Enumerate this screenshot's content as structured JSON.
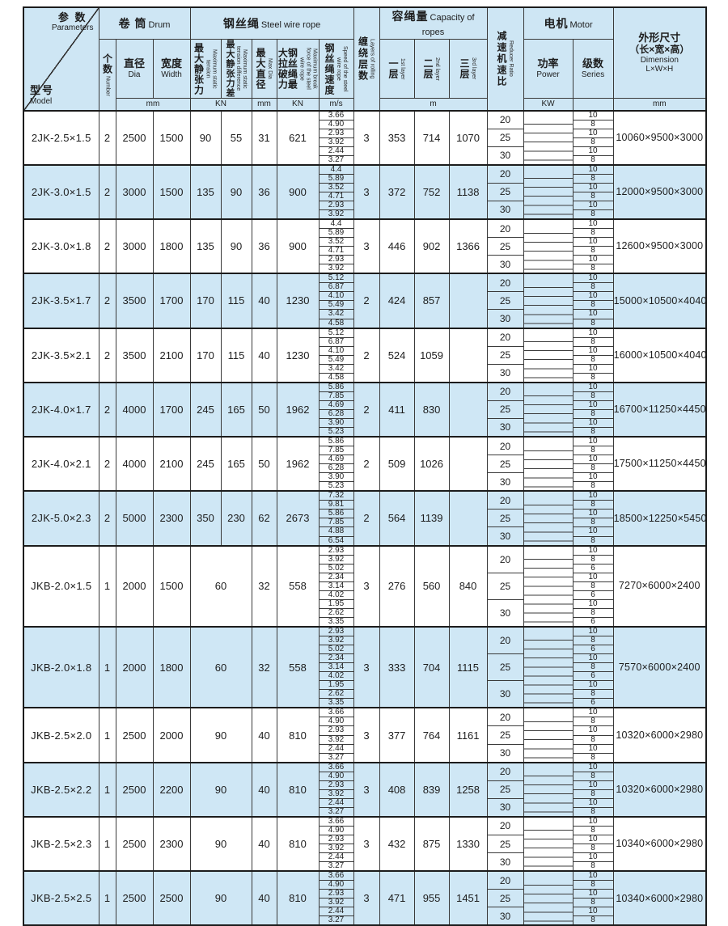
{
  "table": {
    "header": {
      "corner": {
        "top_zh": "参 数",
        "top_en": "Parameters",
        "bottom_zh": "型号",
        "bottom_en": "Model"
      },
      "groups": {
        "drum": {
          "zh": "卷 筒",
          "en": "Drum"
        },
        "rope": {
          "zh": "钢丝绳",
          "en": "Steel wire rope"
        },
        "capacity": {
          "zh": "容绳量",
          "en": "Capacity of ropes"
        },
        "motor": {
          "zh": "电机",
          "en": "Motor"
        }
      },
      "columns": {
        "number": {
          "zh": "个数",
          "en": "Number"
        },
        "dia": {
          "zh": "直径",
          "en": "Dia"
        },
        "width": {
          "zh": "宽度",
          "en": "Width"
        },
        "max_static_tension": {
          "zh": "最大静张力",
          "en": "Maximum static tension"
        },
        "max_static_tension_diff": {
          "zh": "最大静张力差",
          "en": "Maximum static tension difference"
        },
        "max_dia": {
          "zh": "最大直径",
          "en": "Max Dia"
        },
        "break_force": {
          "zh": "钢丝绳最大拉破力",
          "en": "Maximum break force of the steel wire rope"
        },
        "rope_speed": {
          "zh": "钢丝绳速度",
          "en": "Speed of the steel wire rope"
        },
        "layers": {
          "zh": "缠绕层数",
          "en": "Layers of rolling"
        },
        "layer1": {
          "zh": "一层",
          "en": "1st layer"
        },
        "layer2": {
          "zh": "二层",
          "en": "2nd layer"
        },
        "layer3": {
          "zh": "三层",
          "en": "3rd layer"
        },
        "ratio": {
          "zh": "减速机速比",
          "en": "Reducer Ratio"
        },
        "power": {
          "zh": "功率",
          "en": "Power"
        },
        "series": {
          "zh": "级数",
          "en": "Series"
        },
        "dimension": {
          "zh": "外形尺寸",
          "zh2": "（长×宽×高）",
          "en": "Dimension",
          "en2": "L×W×H"
        }
      },
      "units": {
        "drum_mm": "mm",
        "tension_kn": "KN",
        "maxdia_mm": "mm",
        "break_kn": "KN",
        "speed_ms": "m/s",
        "capacity_m": "m",
        "power_kw": "KW",
        "series_unit": "",
        "dim_mm": "mm"
      }
    },
    "rows": [
      {
        "model": "2JK-2.5×1.5",
        "drum_count": "2",
        "drum_dia": "2500",
        "drum_width": "1500",
        "tension_merged": false,
        "max_static_tension": "90",
        "max_static_tension_diff": "55",
        "max_rope_dia": "31",
        "break_force": "621",
        "rope_speeds": [
          "3.66",
          "4.90",
          "2.93",
          "3.92",
          "2.44",
          "3.27"
        ],
        "winding_layers": "3",
        "capacity_1st": "353",
        "capacity_2nd": "714",
        "capacity_3rd": "1070",
        "reducer_ratios": [
          "20",
          "25",
          "30"
        ],
        "motor_series": [
          "10",
          "8"
        ],
        "dimension": "10060×9500×3000"
      },
      {
        "model": "2JK-3.0×1.5",
        "drum_count": "2",
        "drum_dia": "3000",
        "drum_width": "1500",
        "tension_merged": false,
        "max_static_tension": "135",
        "max_static_tension_diff": "90",
        "max_rope_dia": "36",
        "break_force": "900",
        "rope_speeds": [
          "4.4",
          "5.89",
          "3.52",
          "4.71",
          "2.93",
          "3.92"
        ],
        "winding_layers": "3",
        "capacity_1st": "372",
        "capacity_2nd": "752",
        "capacity_3rd": "1138",
        "reducer_ratios": [
          "20",
          "25",
          "30"
        ],
        "motor_series": [
          "10",
          "8"
        ],
        "dimension": "12000×9500×3000"
      },
      {
        "model": "2JK-3.0×1.8",
        "drum_count": "2",
        "drum_dia": "3000",
        "drum_width": "1800",
        "tension_merged": false,
        "max_static_tension": "135",
        "max_static_tension_diff": "90",
        "max_rope_dia": "36",
        "break_force": "900",
        "rope_speeds": [
          "4.4",
          "5.89",
          "3.52",
          "4.71",
          "2.93",
          "3.92"
        ],
        "winding_layers": "3",
        "capacity_1st": "446",
        "capacity_2nd": "902",
        "capacity_3rd": "1366",
        "reducer_ratios": [
          "20",
          "25",
          "30"
        ],
        "motor_series": [
          "10",
          "8"
        ],
        "dimension": "12600×9500×3000"
      },
      {
        "model": "2JK-3.5×1.7",
        "drum_count": "2",
        "drum_dia": "3500",
        "drum_width": "1700",
        "tension_merged": false,
        "max_static_tension": "170",
        "max_static_tension_diff": "115",
        "max_rope_dia": "40",
        "break_force": "1230",
        "rope_speeds": [
          "5.12",
          "6.87",
          "4.10",
          "5.49",
          "3.42",
          "4.58"
        ],
        "winding_layers": "2",
        "capacity_1st": "424",
        "capacity_2nd": "857",
        "capacity_3rd": "",
        "reducer_ratios": [
          "20",
          "25",
          "30"
        ],
        "motor_series": [
          "10",
          "8"
        ],
        "dimension": "15000×10500×4040"
      },
      {
        "model": "2JK-3.5×2.1",
        "drum_count": "2",
        "drum_dia": "3500",
        "drum_width": "2100",
        "tension_merged": false,
        "max_static_tension": "170",
        "max_static_tension_diff": "115",
        "max_rope_dia": "40",
        "break_force": "1230",
        "rope_speeds": [
          "5.12",
          "6.87",
          "4.10",
          "5.49",
          "3.42",
          "4.58"
        ],
        "winding_layers": "2",
        "capacity_1st": "524",
        "capacity_2nd": "1059",
        "capacity_3rd": "",
        "reducer_ratios": [
          "20",
          "25",
          "30"
        ],
        "motor_series": [
          "10",
          "8"
        ],
        "dimension": "16000×10500×4040"
      },
      {
        "model": "2JK-4.0×1.7",
        "drum_count": "2",
        "drum_dia": "4000",
        "drum_width": "1700",
        "tension_merged": false,
        "max_static_tension": "245",
        "max_static_tension_diff": "165",
        "max_rope_dia": "50",
        "break_force": "1962",
        "rope_speeds": [
          "5.86",
          "7.85",
          "4.69",
          "6.28",
          "3.90",
          "5.23"
        ],
        "winding_layers": "2",
        "capacity_1st": "411",
        "capacity_2nd": "830",
        "capacity_3rd": "",
        "reducer_ratios": [
          "20",
          "25",
          "30"
        ],
        "motor_series": [
          "10",
          "8"
        ],
        "dimension": "16700×11250×4450"
      },
      {
        "model": "2JK-4.0×2.1",
        "drum_count": "2",
        "drum_dia": "4000",
        "drum_width": "2100",
        "tension_merged": false,
        "max_static_tension": "245",
        "max_static_tension_diff": "165",
        "max_rope_dia": "50",
        "break_force": "1962",
        "rope_speeds": [
          "5.86",
          "7.85",
          "4.69",
          "6.28",
          "3.90",
          "5.23"
        ],
        "winding_layers": "2",
        "capacity_1st": "509",
        "capacity_2nd": "1026",
        "capacity_3rd": "",
        "reducer_ratios": [
          "20",
          "25",
          "30"
        ],
        "motor_series": [
          "10",
          "8"
        ],
        "dimension": "17500×11250×4450"
      },
      {
        "model": "2JK-5.0×2.3",
        "drum_count": "2",
        "drum_dia": "5000",
        "drum_width": "2300",
        "tension_merged": false,
        "max_static_tension": "350",
        "max_static_tension_diff": "230",
        "max_rope_dia": "62",
        "break_force": "2673",
        "rope_speeds": [
          "7.32",
          "9.81",
          "5.86",
          "7.85",
          "4.88",
          "6.54"
        ],
        "winding_layers": "2",
        "capacity_1st": "564",
        "capacity_2nd": "1139",
        "capacity_3rd": "",
        "reducer_ratios": [
          "20",
          "25",
          "30"
        ],
        "motor_series": [
          "10",
          "8"
        ],
        "dimension": "18500×12250×5450"
      },
      {
        "model": "JKB-2.0×1.5",
        "drum_count": "1",
        "drum_dia": "2000",
        "drum_width": "1500",
        "tension_merged": true,
        "max_static_tension": "60",
        "max_static_tension_diff": "",
        "max_rope_dia": "32",
        "break_force": "558",
        "rope_speeds": [
          "2.93",
          "3.92",
          "5.02",
          "2.34",
          "3.14",
          "4.02",
          "1.95",
          "2.62",
          "3.35"
        ],
        "winding_layers": "3",
        "capacity_1st": "276",
        "capacity_2nd": "560",
        "capacity_3rd": "840",
        "reducer_ratios": [
          "20",
          "25",
          "30"
        ],
        "motor_series": [
          "10",
          "8",
          "6"
        ],
        "dimension": "7270×6000×2400"
      },
      {
        "model": "JKB-2.0×1.8",
        "drum_count": "1",
        "drum_dia": "2000",
        "drum_width": "1800",
        "tension_merged": true,
        "max_static_tension": "60",
        "max_static_tension_diff": "",
        "max_rope_dia": "32",
        "break_force": "558",
        "rope_speeds": [
          "2.93",
          "3.92",
          "5.02",
          "2.34",
          "3.14",
          "4.02",
          "1.95",
          "2.62",
          "3.35"
        ],
        "winding_layers": "3",
        "capacity_1st": "333",
        "capacity_2nd": "704",
        "capacity_3rd": "1115",
        "reducer_ratios": [
          "20",
          "25",
          "30"
        ],
        "motor_series": [
          "10",
          "8",
          "6"
        ],
        "dimension": "7570×6000×2400"
      },
      {
        "model": "JKB-2.5×2.0",
        "drum_count": "1",
        "drum_dia": "2500",
        "drum_width": "2000",
        "tension_merged": true,
        "max_static_tension": "90",
        "max_static_tension_diff": "",
        "max_rope_dia": "40",
        "break_force": "810",
        "rope_speeds": [
          "3.66",
          "4.90",
          "2.93",
          "3.92",
          "2.44",
          "3.27"
        ],
        "winding_layers": "3",
        "capacity_1st": "377",
        "capacity_2nd": "764",
        "capacity_3rd": "1161",
        "reducer_ratios": [
          "20",
          "25",
          "30"
        ],
        "motor_series": [
          "10",
          "8"
        ],
        "dimension": "10320×6000×2980"
      },
      {
        "model": "JKB-2.5×2.2",
        "drum_count": "1",
        "drum_dia": "2500",
        "drum_width": "2200",
        "tension_merged": true,
        "max_static_tension": "90",
        "max_static_tension_diff": "",
        "max_rope_dia": "40",
        "break_force": "810",
        "rope_speeds": [
          "3.66",
          "4.90",
          "2.93",
          "3.92",
          "2.44",
          "3.27"
        ],
        "winding_layers": "3",
        "capacity_1st": "408",
        "capacity_2nd": "839",
        "capacity_3rd": "1258",
        "reducer_ratios": [
          "20",
          "25",
          "30"
        ],
        "motor_series": [
          "10",
          "8"
        ],
        "dimension": "10320×6000×2980"
      },
      {
        "model": "JKB-2.5×2.3",
        "drum_count": "1",
        "drum_dia": "2500",
        "drum_width": "2300",
        "tension_merged": true,
        "max_static_tension": "90",
        "max_static_tension_diff": "",
        "max_rope_dia": "40",
        "break_force": "810",
        "rope_speeds": [
          "3.66",
          "4.90",
          "2.93",
          "3.92",
          "2.44",
          "3.27"
        ],
        "winding_layers": "3",
        "capacity_1st": "432",
        "capacity_2nd": "875",
        "capacity_3rd": "1330",
        "reducer_ratios": [
          "20",
          "25",
          "30"
        ],
        "motor_series": [
          "10",
          "8"
        ],
        "dimension": "10340×6000×2980"
      },
      {
        "model": "JKB-2.5×2.5",
        "drum_count": "1",
        "drum_dia": "2500",
        "drum_width": "2500",
        "tension_merged": true,
        "max_static_tension": "90",
        "max_static_tension_diff": "",
        "max_rope_dia": "40",
        "break_force": "810",
        "rope_speeds": [
          "3.66",
          "4.90",
          "2.93",
          "3.92",
          "2.44",
          "3.27"
        ],
        "winding_layers": "3",
        "capacity_1st": "471",
        "capacity_2nd": "955",
        "capacity_3rd": "1451",
        "reducer_ratios": [
          "20",
          "25",
          "30"
        ],
        "motor_series": [
          "10",
          "8"
        ],
        "dimension": "10340×6000×2980"
      }
    ]
  }
}
